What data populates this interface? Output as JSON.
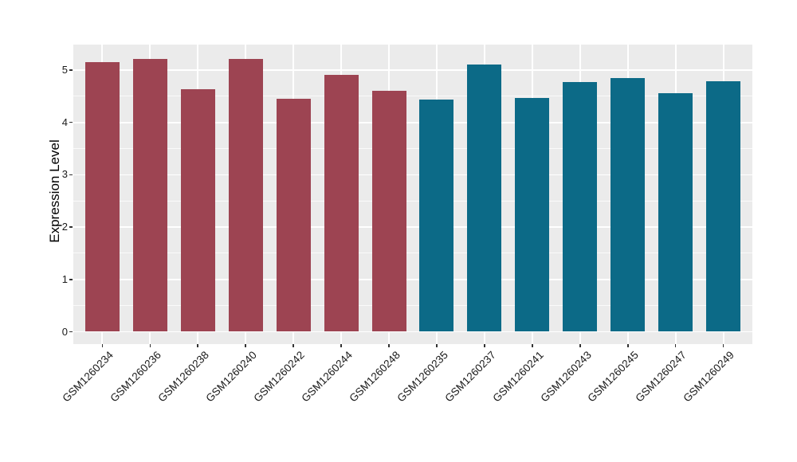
{
  "chart_data": {
    "type": "bar",
    "title": "",
    "xlabel": "",
    "ylabel": "Expression Level",
    "categories": [
      "GSM1260234",
      "GSM1260236",
      "GSM1260238",
      "GSM1260240",
      "GSM1260242",
      "GSM1260244",
      "GSM1260248",
      "GSM1260235",
      "GSM1260237",
      "GSM1260241",
      "GSM1260243",
      "GSM1260245",
      "GSM1260247",
      "GSM1260249"
    ],
    "values": [
      5.15,
      5.22,
      4.64,
      5.22,
      4.45,
      4.91,
      4.6,
      4.44,
      5.11,
      4.46,
      4.77,
      4.85,
      4.56,
      4.78
    ],
    "bar_colors": [
      "#9D4452",
      "#9D4452",
      "#9D4452",
      "#9D4452",
      "#9D4452",
      "#9D4452",
      "#9D4452",
      "#0C6A87",
      "#0C6A87",
      "#0C6A87",
      "#0C6A87",
      "#0C6A87",
      "#0C6A87",
      "#0C6A87"
    ],
    "yticks": [
      0,
      1,
      2,
      3,
      4,
      5
    ],
    "ylim": [
      0,
      5.49
    ],
    "x_tick_angle": 45,
    "grid": true,
    "legend": "none",
    "style": {
      "panel_bg": "#EBEBEB",
      "grid_major_color": "#FFFFFF",
      "grid_minor_color": "rgba(255,255,255,0.75)",
      "tick_mark_color": "#333333",
      "axis_text_color": "#1A1A1A"
    }
  }
}
